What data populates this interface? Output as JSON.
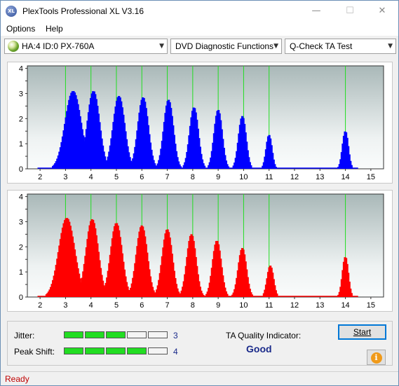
{
  "window": {
    "title": "PlexTools Professional XL V3.16",
    "app_icon_text": "XL",
    "minimize_glyph": "—",
    "maximize_glyph": "☐",
    "close_glyph": "✕"
  },
  "menu": {
    "options": "Options",
    "help": "Help"
  },
  "toolbar": {
    "drive": "HA:4 ID:0  PX-760A",
    "function": "DVD Diagnostic Functions",
    "test": "Q-Check TA Test",
    "dropdown_glyph": "▼"
  },
  "chart_data": [
    {
      "type": "bar",
      "panel": "top",
      "color": "#0000ff",
      "x_ticks": [
        "2",
        "3",
        "4",
        "5",
        "6",
        "7",
        "8",
        "9",
        "10",
        "11",
        "12",
        "13",
        "14",
        "15"
      ],
      "y_ticks": [
        "4",
        "3.5",
        "3",
        "2.5",
        "2",
        "1.5",
        "1",
        "0.5",
        "0"
      ],
      "xlim": [
        1.5,
        15.5
      ],
      "ylim": [
        0,
        4.1
      ],
      "green_lines": [
        3,
        4,
        5,
        6,
        7,
        8,
        9,
        10,
        11,
        14
      ],
      "peaks": [
        {
          "center": 3.3,
          "width": 0.55,
          "height": 3.1
        },
        {
          "center": 4.1,
          "width": 0.42,
          "height": 3.1
        },
        {
          "center": 5.1,
          "width": 0.4,
          "height": 2.9
        },
        {
          "center": 6.05,
          "width": 0.36,
          "height": 2.85
        },
        {
          "center": 7.05,
          "width": 0.33,
          "height": 2.75
        },
        {
          "center": 8.05,
          "width": 0.3,
          "height": 2.45
        },
        {
          "center": 9.0,
          "width": 0.28,
          "height": 2.35
        },
        {
          "center": 9.95,
          "width": 0.26,
          "height": 2.1
        },
        {
          "center": 11.0,
          "width": 0.2,
          "height": 1.35
        },
        {
          "center": 14.0,
          "width": 0.2,
          "height": 1.5
        }
      ]
    },
    {
      "type": "bar",
      "panel": "bottom",
      "color": "#ff0000",
      "x_ticks": [
        "2",
        "3",
        "4",
        "5",
        "6",
        "7",
        "8",
        "9",
        "10",
        "11",
        "12",
        "13",
        "14",
        "15"
      ],
      "y_ticks": [
        "4",
        "3.5",
        "3",
        "2.5",
        "2",
        "1.5",
        "1",
        "0.5",
        "0"
      ],
      "xlim": [
        1.5,
        15.5
      ],
      "ylim": [
        0,
        4.1
      ],
      "green_lines": [
        3,
        4,
        5,
        6,
        7,
        8,
        9,
        10,
        11,
        14
      ],
      "peaks": [
        {
          "center": 3.05,
          "width": 0.55,
          "height": 3.15
        },
        {
          "center": 4.05,
          "width": 0.42,
          "height": 3.1
        },
        {
          "center": 5.0,
          "width": 0.4,
          "height": 2.95
        },
        {
          "center": 6.0,
          "width": 0.38,
          "height": 2.85
        },
        {
          "center": 7.0,
          "width": 0.35,
          "height": 2.7
        },
        {
          "center": 7.95,
          "width": 0.32,
          "height": 2.5
        },
        {
          "center": 8.95,
          "width": 0.3,
          "height": 2.25
        },
        {
          "center": 9.95,
          "width": 0.28,
          "height": 1.95
        },
        {
          "center": 11.05,
          "width": 0.22,
          "height": 1.25
        },
        {
          "center": 14.0,
          "width": 0.2,
          "height": 1.6
        }
      ]
    }
  ],
  "results": {
    "jitter_label": "Jitter:",
    "jitter_value": "3",
    "jitter_level": 3,
    "peak_shift_label": "Peak Shift:",
    "peak_shift_value": "4",
    "peak_shift_level": 4,
    "meter_segments": 5,
    "ta_label": "TA Quality Indicator:",
    "ta_value": "Good",
    "start_label": "Start",
    "info_glyph": "i"
  },
  "status": {
    "text": "Ready"
  }
}
